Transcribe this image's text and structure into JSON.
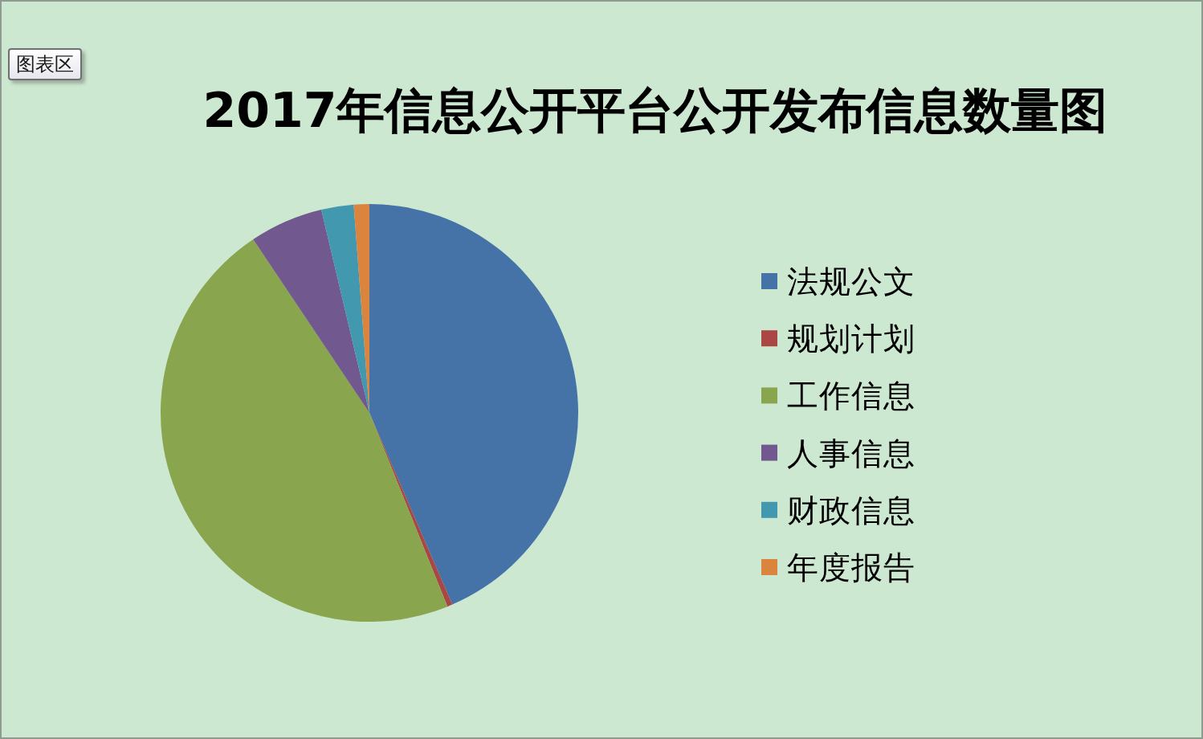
{
  "chart_data": {
    "type": "pie",
    "title": "2017年信息公开平台公开发布信息数量图",
    "categories": [
      "法规公文",
      "规划计划",
      "工作信息",
      "人事信息",
      "财政信息",
      "年度报告"
    ],
    "values": [
      43.5,
      0.4,
      46.7,
      5.7,
      2.5,
      1.2
    ],
    "colors": [
      "#4572a7",
      "#aa4643",
      "#89a54e",
      "#71588f",
      "#4198af",
      "#db843d"
    ],
    "legend": "right",
    "annotations": [
      "图表区"
    ]
  }
}
